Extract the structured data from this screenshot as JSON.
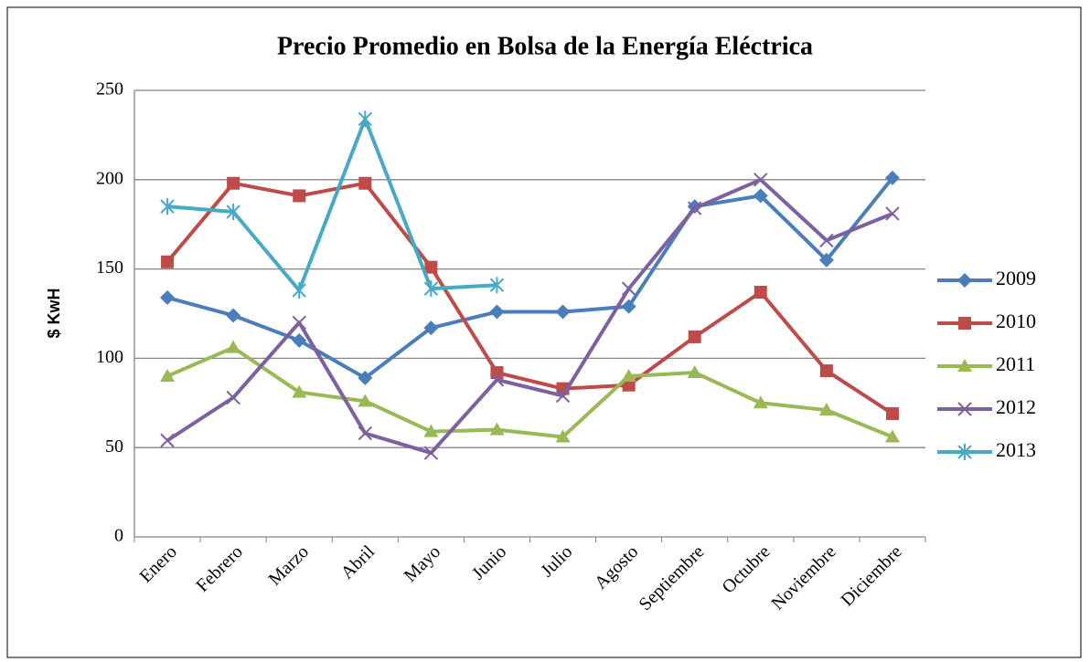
{
  "chart_data": {
    "type": "line",
    "title": "Precio Promedio en Bolsa de la Energía Eléctrica",
    "y_label": "$ KwH",
    "categories": [
      "Enero",
      "Febrero",
      "Marzo",
      "Abril",
      "Mayo",
      "Junio",
      "Julio",
      "Agosto",
      "Septiembre",
      "Octubre",
      "Noviembre",
      "Diciembre"
    ],
    "series": [
      {
        "name": "2009",
        "color": "#4a7ebb",
        "marker": "diamond",
        "values": [
          134,
          124,
          110,
          89,
          117,
          126,
          126,
          129,
          185,
          191,
          155,
          201
        ]
      },
      {
        "name": "2010",
        "color": "#be4b48",
        "marker": "square",
        "values": [
          154,
          198,
          191,
          198,
          151,
          92,
          83,
          85,
          112,
          137,
          93,
          69
        ]
      },
      {
        "name": "2011",
        "color": "#98b954",
        "marker": "triangle",
        "values": [
          90,
          106,
          81,
          76,
          59,
          60,
          56,
          90,
          92,
          75,
          71,
          56
        ]
      },
      {
        "name": "2012",
        "color": "#7d60a0",
        "marker": "x",
        "values": [
          54,
          78,
          120,
          58,
          47,
          88,
          79,
          139,
          184,
          200,
          166,
          181
        ]
      },
      {
        "name": "2013",
        "color": "#46aac5",
        "marker": "star",
        "values": [
          185,
          182,
          138,
          234,
          139,
          141,
          null,
          null,
          null,
          null,
          null,
          null
        ]
      }
    ],
    "ylim": [
      0,
      250
    ],
    "yticks": [
      0,
      50,
      100,
      150,
      200,
      250
    ],
    "grid": true,
    "legend": "right"
  }
}
